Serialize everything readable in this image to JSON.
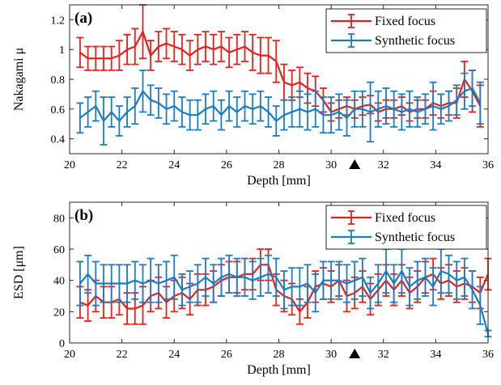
{
  "colors": {
    "fixed": "#e8201c",
    "synthetic": "#1b7cc0",
    "axis": "#262626"
  },
  "chart_data": [
    {
      "type": "line",
      "panel_label": "(a)",
      "xlabel": "Depth [mm]",
      "ylabel": "Nakagami μ",
      "xlim": [
        20,
        36
      ],
      "ylim": [
        0.3,
        1.3
      ],
      "xticks": [
        "20",
        "22",
        "24",
        "26",
        "28",
        "30",
        "32",
        "34",
        "36"
      ],
      "yticks": [
        "0.4",
        "0.6",
        "0.8",
        "1",
        "1.2"
      ],
      "ytick_values": [
        0.4,
        0.6,
        0.8,
        1.0,
        1.2
      ],
      "legend_position": "top-right",
      "marker": {
        "x": 30.9,
        "shape": "triangle"
      },
      "x": [
        20.4,
        20.7,
        21.0,
        21.3,
        21.6,
        21.9,
        22.2,
        22.5,
        22.8,
        23.1,
        23.4,
        23.7,
        24.0,
        24.3,
        24.6,
        24.9,
        25.2,
        25.5,
        25.8,
        26.1,
        26.4,
        26.7,
        27.0,
        27.3,
        27.6,
        27.9,
        28.2,
        28.5,
        28.8,
        29.1,
        29.4,
        29.7,
        30.0,
        30.3,
        30.6,
        30.9,
        31.2,
        31.5,
        31.8,
        32.1,
        32.4,
        32.7,
        33.0,
        33.3,
        33.6,
        33.9,
        34.2,
        34.5,
        34.8,
        35.1,
        35.4,
        35.7
      ],
      "series": [
        {
          "name": "Fixed focus",
          "color_key": "fixed",
          "y": [
            0.98,
            0.94,
            0.94,
            0.94,
            0.94,
            0.96,
            1.0,
            1.02,
            1.12,
            0.96,
            1.02,
            1.04,
            1.02,
            1.0,
            0.96,
            1.0,
            1.02,
            1.0,
            1.02,
            0.98,
            1.0,
            1.02,
            0.98,
            0.96,
            0.96,
            0.92,
            0.78,
            0.76,
            0.78,
            0.74,
            0.72,
            0.66,
            0.58,
            0.6,
            0.62,
            0.6,
            0.62,
            0.63,
            0.58,
            0.6,
            0.6,
            0.62,
            0.58,
            0.6,
            0.6,
            0.64,
            0.62,
            0.64,
            0.64,
            0.8,
            0.72,
            0.62
          ],
          "err": [
            0.1,
            0.08,
            0.08,
            0.08,
            0.08,
            0.1,
            0.1,
            0.12,
            0.18,
            0.1,
            0.1,
            0.1,
            0.1,
            0.1,
            0.1,
            0.1,
            0.1,
            0.1,
            0.1,
            0.1,
            0.1,
            0.1,
            0.12,
            0.12,
            0.12,
            0.14,
            0.12,
            0.1,
            0.1,
            0.1,
            0.1,
            0.08,
            0.06,
            0.06,
            0.06,
            0.06,
            0.06,
            0.06,
            0.06,
            0.06,
            0.06,
            0.06,
            0.06,
            0.06,
            0.06,
            0.08,
            0.08,
            0.08,
            0.1,
            0.12,
            0.14,
            0.14
          ]
        },
        {
          "name": "Synthetic focus",
          "color_key": "synthetic",
          "y": [
            0.54,
            0.58,
            0.62,
            0.52,
            0.58,
            0.52,
            0.58,
            0.62,
            0.72,
            0.66,
            0.64,
            0.6,
            0.62,
            0.58,
            0.56,
            0.56,
            0.6,
            0.62,
            0.56,
            0.62,
            0.58,
            0.62,
            0.6,
            0.62,
            0.58,
            0.52,
            0.56,
            0.58,
            0.6,
            0.58,
            0.6,
            0.56,
            0.56,
            0.58,
            0.54,
            0.6,
            0.6,
            0.58,
            0.6,
            0.62,
            0.6,
            0.58,
            0.6,
            0.58,
            0.6,
            0.62,
            0.6,
            0.62,
            0.66,
            0.72,
            0.74,
            0.64
          ],
          "err": [
            0.1,
            0.1,
            0.1,
            0.16,
            0.1,
            0.1,
            0.1,
            0.12,
            0.14,
            0.1,
            0.1,
            0.1,
            0.1,
            0.1,
            0.1,
            0.1,
            0.1,
            0.1,
            0.1,
            0.1,
            0.1,
            0.1,
            0.1,
            0.1,
            0.1,
            0.1,
            0.1,
            0.1,
            0.12,
            0.12,
            0.12,
            0.12,
            0.12,
            0.12,
            0.12,
            0.12,
            0.12,
            0.2,
            0.12,
            0.12,
            0.12,
            0.12,
            0.12,
            0.1,
            0.1,
            0.16,
            0.1,
            0.1,
            0.1,
            0.12,
            0.12,
            0.14
          ]
        }
      ]
    },
    {
      "type": "line",
      "panel_label": "(b)",
      "xlabel": "Depth [mm]",
      "ylabel": "ESD [μm]",
      "xlim": [
        20,
        36
      ],
      "ylim": [
        0,
        90
      ],
      "xticks": [
        "20",
        "22",
        "24",
        "26",
        "28",
        "30",
        "32",
        "34",
        "36"
      ],
      "yticks": [
        "0",
        "20",
        "40",
        "60",
        "80"
      ],
      "ytick_values": [
        0,
        20,
        40,
        60,
        80
      ],
      "legend_position": "top-right",
      "marker": {
        "x": 30.9,
        "shape": "triangle"
      },
      "x": [
        20.4,
        20.7,
        21.0,
        21.3,
        21.6,
        21.9,
        22.2,
        22.5,
        22.8,
        23.1,
        23.4,
        23.7,
        24.0,
        24.3,
        24.6,
        24.9,
        25.2,
        25.5,
        25.8,
        26.1,
        26.4,
        26.7,
        27.0,
        27.3,
        27.6,
        27.9,
        28.2,
        28.5,
        28.8,
        29.1,
        29.4,
        29.7,
        30.0,
        30.3,
        30.6,
        30.9,
        31.2,
        31.5,
        31.8,
        32.1,
        32.4,
        32.7,
        33.0,
        33.3,
        33.6,
        33.9,
        34.2,
        34.5,
        34.8,
        35.1,
        35.4,
        35.7,
        36.0
      ],
      "series": [
        {
          "name": "Fixed focus",
          "color_key": "fixed",
          "y": [
            26,
            24,
            30,
            26,
            26,
            28,
            22,
            22,
            24,
            30,
            32,
            26,
            30,
            32,
            28,
            34,
            34,
            36,
            40,
            42,
            42,
            44,
            44,
            50,
            50,
            34,
            30,
            28,
            20,
            26,
            36,
            38,
            36,
            40,
            30,
            32,
            36,
            28,
            34,
            40,
            34,
            40,
            32,
            36,
            42,
            44,
            38,
            40,
            36,
            38,
            36,
            32,
            44
          ],
          "err": [
            10,
            10,
            10,
            10,
            10,
            10,
            10,
            10,
            12,
            10,
            10,
            10,
            10,
            10,
            10,
            10,
            10,
            10,
            10,
            10,
            10,
            10,
            10,
            10,
            10,
            10,
            10,
            10,
            8,
            10,
            10,
            10,
            10,
            10,
            10,
            10,
            10,
            10,
            10,
            10,
            10,
            10,
            10,
            10,
            10,
            10,
            10,
            10,
            10,
            10,
            10,
            10,
            10
          ]
        },
        {
          "name": "Synthetic focus",
          "color_key": "synthetic",
          "y": [
            38,
            44,
            38,
            38,
            38,
            38,
            38,
            40,
            38,
            40,
            38,
            40,
            42,
            34,
            36,
            38,
            42,
            38,
            42,
            44,
            42,
            42,
            40,
            42,
            44,
            42,
            34,
            36,
            36,
            38,
            32,
            40,
            40,
            40,
            38,
            40,
            42,
            32,
            38,
            46,
            38,
            46,
            36,
            40,
            42,
            36,
            46,
            44,
            40,
            42,
            34,
            24,
            6
          ],
          "err": [
            14,
            12,
            14,
            12,
            12,
            12,
            12,
            12,
            12,
            14,
            12,
            12,
            14,
            10,
            10,
            12,
            12,
            12,
            12,
            12,
            12,
            12,
            12,
            12,
            12,
            12,
            12,
            12,
            12,
            12,
            12,
            12,
            12,
            12,
            12,
            12,
            12,
            10,
            12,
            14,
            12,
            14,
            12,
            12,
            12,
            12,
            14,
            12,
            12,
            12,
            12,
            12,
            2
          ]
        }
      ]
    }
  ]
}
